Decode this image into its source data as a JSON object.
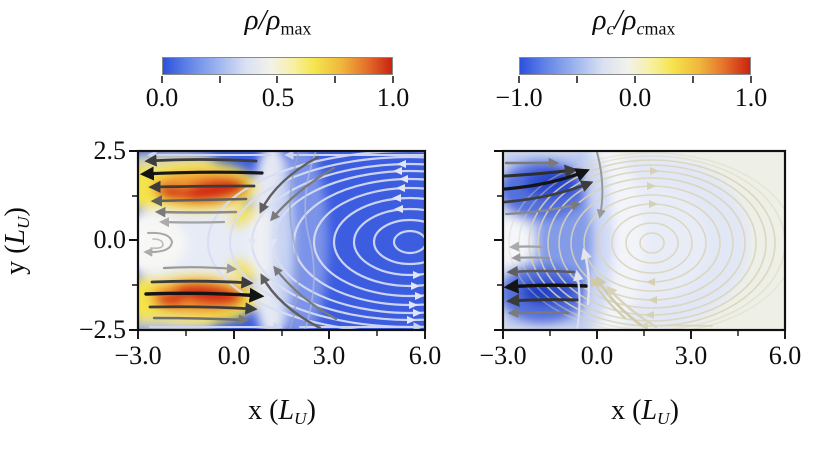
{
  "figure": {
    "left_panel": {
      "colorbar_title": [
        {
          "t": "ρ/ρ",
          "i": 1
        },
        {
          "t": "max",
          "s": 1
        }
      ],
      "colorbar_tick_labels": [
        "0.0",
        "0.5",
        "1.0"
      ],
      "x_tick_labels": [
        "−3.0",
        "0.0",
        "3.0",
        "6.0"
      ],
      "y_tick_labels": [
        "2.5",
        "0.0",
        "−2.5"
      ],
      "x_label": [
        {
          "t": "x ("
        },
        {
          "t": "L",
          "i": 1
        },
        {
          "t": "U",
          "i": 1,
          "s": 1
        },
        {
          "t": ")"
        }
      ],
      "y_label": [
        {
          "t": "y ("
        },
        {
          "t": "L",
          "i": 1
        },
        {
          "t": "U",
          "i": 1,
          "s": 1
        },
        {
          "t": ")"
        }
      ]
    },
    "right_panel": {
      "colorbar_title": [
        {
          "t": "ρ",
          "i": 1
        },
        {
          "t": "c",
          "i": 1,
          "s": 1
        },
        {
          "t": "/ρ",
          "i": 1
        },
        {
          "t": "c",
          "i": 1,
          "s": 1
        },
        {
          "t": "max",
          "s": 1
        }
      ],
      "colorbar_tick_labels": [
        "−1.0",
        "0.0",
        "1.0"
      ],
      "x_tick_labels": [
        "−3.0",
        "0.0",
        "3.0",
        "6.0"
      ],
      "x_label": [
        {
          "t": "x ("
        },
        {
          "t": "L",
          "i": 1
        },
        {
          "t": "U",
          "i": 1,
          "s": 1
        },
        {
          "t": ")"
        }
      ]
    },
    "colors": {
      "colormap": [
        "#2c51dd",
        "#9db4ee",
        "#f2f2ec",
        "#f5e54e",
        "#f0b63c",
        "#c92311"
      ],
      "left_panel_background": "#3c5de0",
      "right_panel_background": "#eef0e7",
      "hotspot_red": "#d52b12",
      "hotspot_orange": "#f09c34",
      "hotspot_yellow": "#f4e44c",
      "streamline_light": "#d8def2",
      "streamline_beige": "#d9d4b9",
      "streamline_dark": "#181818"
    }
  },
  "chart_data": [
    {
      "type": "heatmap",
      "subtype": "2d-scalar-field-with-streamlines",
      "title": "rho/rho_max",
      "xlabel": "x (L_U)",
      "ylabel": "y (L_U)",
      "xlim": [
        -3.0,
        6.0
      ],
      "ylim": [
        -2.5,
        2.5
      ],
      "xticks": [
        -3.0,
        0.0,
        3.0,
        6.0
      ],
      "yticks": [
        -2.5,
        0.0,
        2.5
      ],
      "colorbar_range": [
        0.0,
        1.0
      ],
      "colorbar_ticks": [
        0.0,
        0.5,
        1.0
      ],
      "colormap": "blue -> white -> yellow -> red",
      "features": [
        "two high-density lobes (rho/rho_max near 1.0, red cores) centered near x=-1.5, y=+1.8 and x=-1.5, y=-1.8 extending from the left edge to x=0",
        "yellow/orange halo around each lobe",
        "pale low-gradient region near the left edge at y=0 with a small vortex",
        "white transition band near x=0.5",
        "uniform low density (about 0.1, blue) for x greater than 1",
        "large counterclockwise recirculation cell occupying x greater than 0: nested streamline arcs, arrows leftward along the top, rightward along the bottom",
        "dark leftward streamline arrows over the top lobe, dark rightward arrows over the bottom lobe"
      ]
    },
    {
      "type": "heatmap",
      "subtype": "2d-scalar-field-with-streamlines",
      "title": "rho_c/rho_c_max",
      "xlabel": "x (L_U)",
      "ylabel": "y (L_U)",
      "xlim": [
        -3.0,
        6.0
      ],
      "ylim": [
        -2.5,
        2.5
      ],
      "xticks": [
        -3.0,
        0.0,
        3.0,
        6.0
      ],
      "yticks": [
        -2.5,
        0.0,
        2.5
      ],
      "colorbar_range": [
        -1.0,
        1.0
      ],
      "colorbar_ticks": [
        -1.0,
        0.0,
        1.0
      ],
      "colormap": "blue -> white -> yellow -> red",
      "features": [
        "two strongly negative lobes (rho_c/rho_c_max near -1.0, dark blue) near x=-1.5, y=+1.8 and x=-1.5, y=-1.8 joined by a blue column near x=-0.5",
        "white spot at the left edge near y=0",
        "near-zero (pale cream/white) background for x greater than 1",
        "pale blue circular vortex patch centered near x=2.5, y=0",
        "clockwise circulation: dark rightward arrows at top-left, black leftward arrows at bottom-left",
        "fine beige closed streamline rings inside the vortex patch"
      ]
    }
  ]
}
